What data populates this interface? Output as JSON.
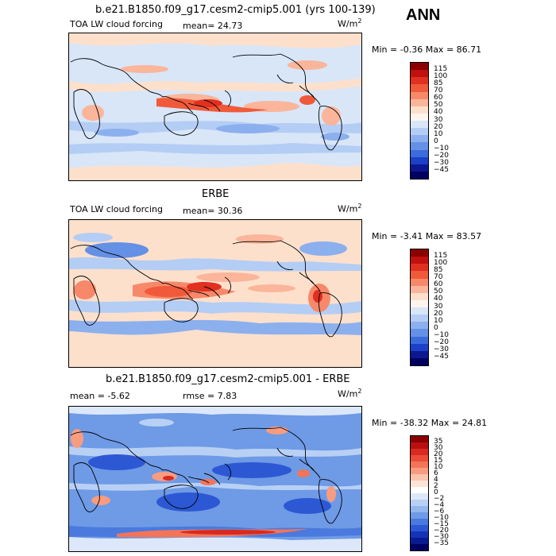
{
  "season": "ANN",
  "panels": [
    {
      "title": "b.e21.B1850.f09_g17.cesm2-cmip5.001 (yrs 100-139)",
      "variable": "TOA LW cloud forcing",
      "stat1_label": "mean=",
      "stat1_value": "24.73",
      "stat2_label": "",
      "stat2_value": "",
      "units": "W/m",
      "units_exp": "2",
      "min_label": "Min =",
      "min_value": "-0.36",
      "max_label": "Max =",
      "max_value": "86.71",
      "colorbar_levels": [
        "115",
        "100",
        "85",
        "70",
        "60",
        "50",
        "40",
        "30",
        "20",
        "10",
        "0",
        "−10",
        "−20",
        "−30",
        "−45"
      ],
      "colorbar_colors": [
        "#8b0000",
        "#c01010",
        "#e03020",
        "#f05a3a",
        "#f7896a",
        "#fbb59a",
        "#fde0cc",
        "#fff5ee",
        "#d8e6f8",
        "#b4cdf4",
        "#8cb0ee",
        "#6490e6",
        "#3c6cdc",
        "#1c40c8",
        "#0c1890",
        "#000060"
      ]
    },
    {
      "title": "ERBE",
      "variable": "TOA LW cloud forcing",
      "stat1_label": "mean=",
      "stat1_value": "30.36",
      "stat2_label": "",
      "stat2_value": "",
      "units": "W/m",
      "units_exp": "2",
      "min_label": "Min =",
      "min_value": "-3.41",
      "max_label": "Max =",
      "max_value": "83.57",
      "colorbar_levels": [
        "115",
        "100",
        "85",
        "70",
        "60",
        "50",
        "40",
        "30",
        "20",
        "10",
        "0",
        "−10",
        "−20",
        "−30",
        "−45"
      ],
      "colorbar_colors": [
        "#8b0000",
        "#c01010",
        "#e03020",
        "#f05a3a",
        "#f7896a",
        "#fbb59a",
        "#fde0cc",
        "#fff5ee",
        "#d8e6f8",
        "#b4cdf4",
        "#8cb0ee",
        "#6490e6",
        "#3c6cdc",
        "#1c40c8",
        "#0c1890",
        "#000060"
      ]
    },
    {
      "title": "b.e21.B1850.f09_g17.cesm2-cmip5.001 - ERBE",
      "variable": "",
      "stat1_label": "mean =",
      "stat1_value": "-5.62",
      "stat2_label": "rmse =",
      "stat2_value": "7.83",
      "units": "W/m",
      "units_exp": "2",
      "min_label": "Min =",
      "min_value": "-38.32",
      "max_label": "Max =",
      "max_value": "24.81",
      "colorbar_levels": [
        "35",
        "30",
        "20",
        "15",
        "10",
        "6",
        "4",
        "2",
        "0",
        "−2",
        "−4",
        "−6",
        "−10",
        "−15",
        "−20",
        "−30",
        "−35"
      ],
      "colorbar_colors": [
        "#8b0000",
        "#b81010",
        "#d82a20",
        "#ec4c38",
        "#f47458",
        "#f89c80",
        "#fbc4ac",
        "#fde4d6",
        "#ffffff",
        "#dce8fa",
        "#b8d0f4",
        "#94b8ee",
        "#6e9ae6",
        "#4a7ade",
        "#2c58d4",
        "#1434b8",
        "#081c90",
        "#000060"
      ]
    }
  ]
}
